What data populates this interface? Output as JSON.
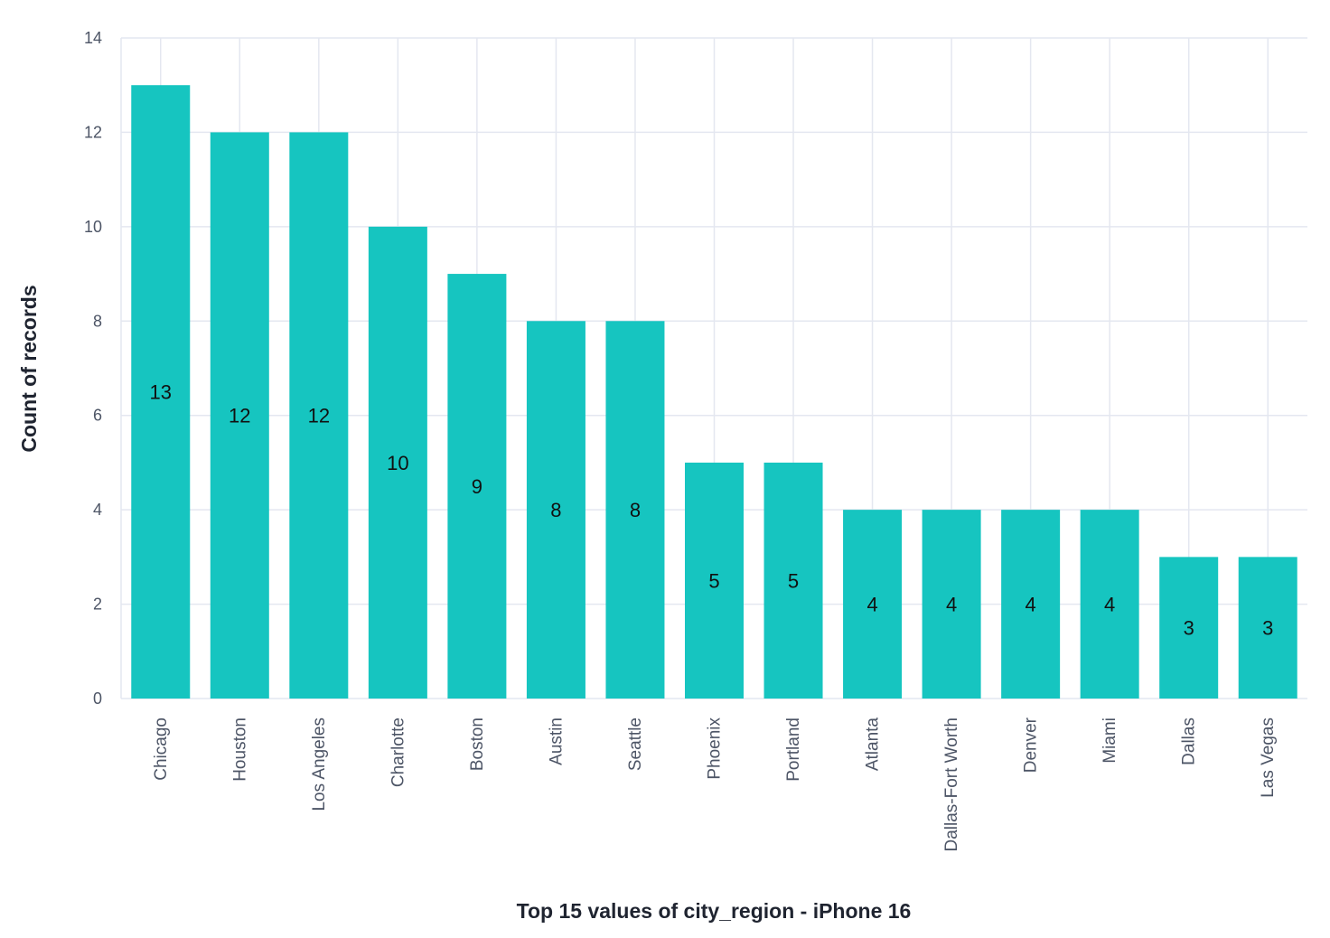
{
  "chart_data": {
    "type": "bar",
    "categories": [
      "Chicago",
      "Houston",
      "Los Angeles",
      "Charlotte",
      "Boston",
      "Austin",
      "Seattle",
      "Phoenix",
      "Portland",
      "Atlanta",
      "Dallas-Fort Worth",
      "Denver",
      "Miami",
      "Dallas",
      "Las Vegas"
    ],
    "values": [
      13,
      12,
      12,
      10,
      9,
      8,
      8,
      5,
      5,
      4,
      4,
      4,
      4,
      3,
      3
    ],
    "value_labels": [
      "13",
      "12",
      "12",
      "10",
      "9",
      "8",
      "8",
      "5",
      "5",
      "4",
      "4",
      "4",
      "4",
      "3",
      "3"
    ],
    "xlabel": "Top 15 values of city_region - iPhone 16",
    "ylabel": "Count of records",
    "ylim": [
      0,
      14
    ],
    "yticks": [
      0,
      2,
      4,
      6,
      8,
      10,
      12,
      14
    ],
    "ytick_labels": [
      "0",
      "2",
      "4",
      "6",
      "8",
      "10",
      "12",
      "14"
    ],
    "grid": true,
    "legend": "none",
    "bar_color": "#16c5c0",
    "grid_color": "#e4e7f0"
  }
}
